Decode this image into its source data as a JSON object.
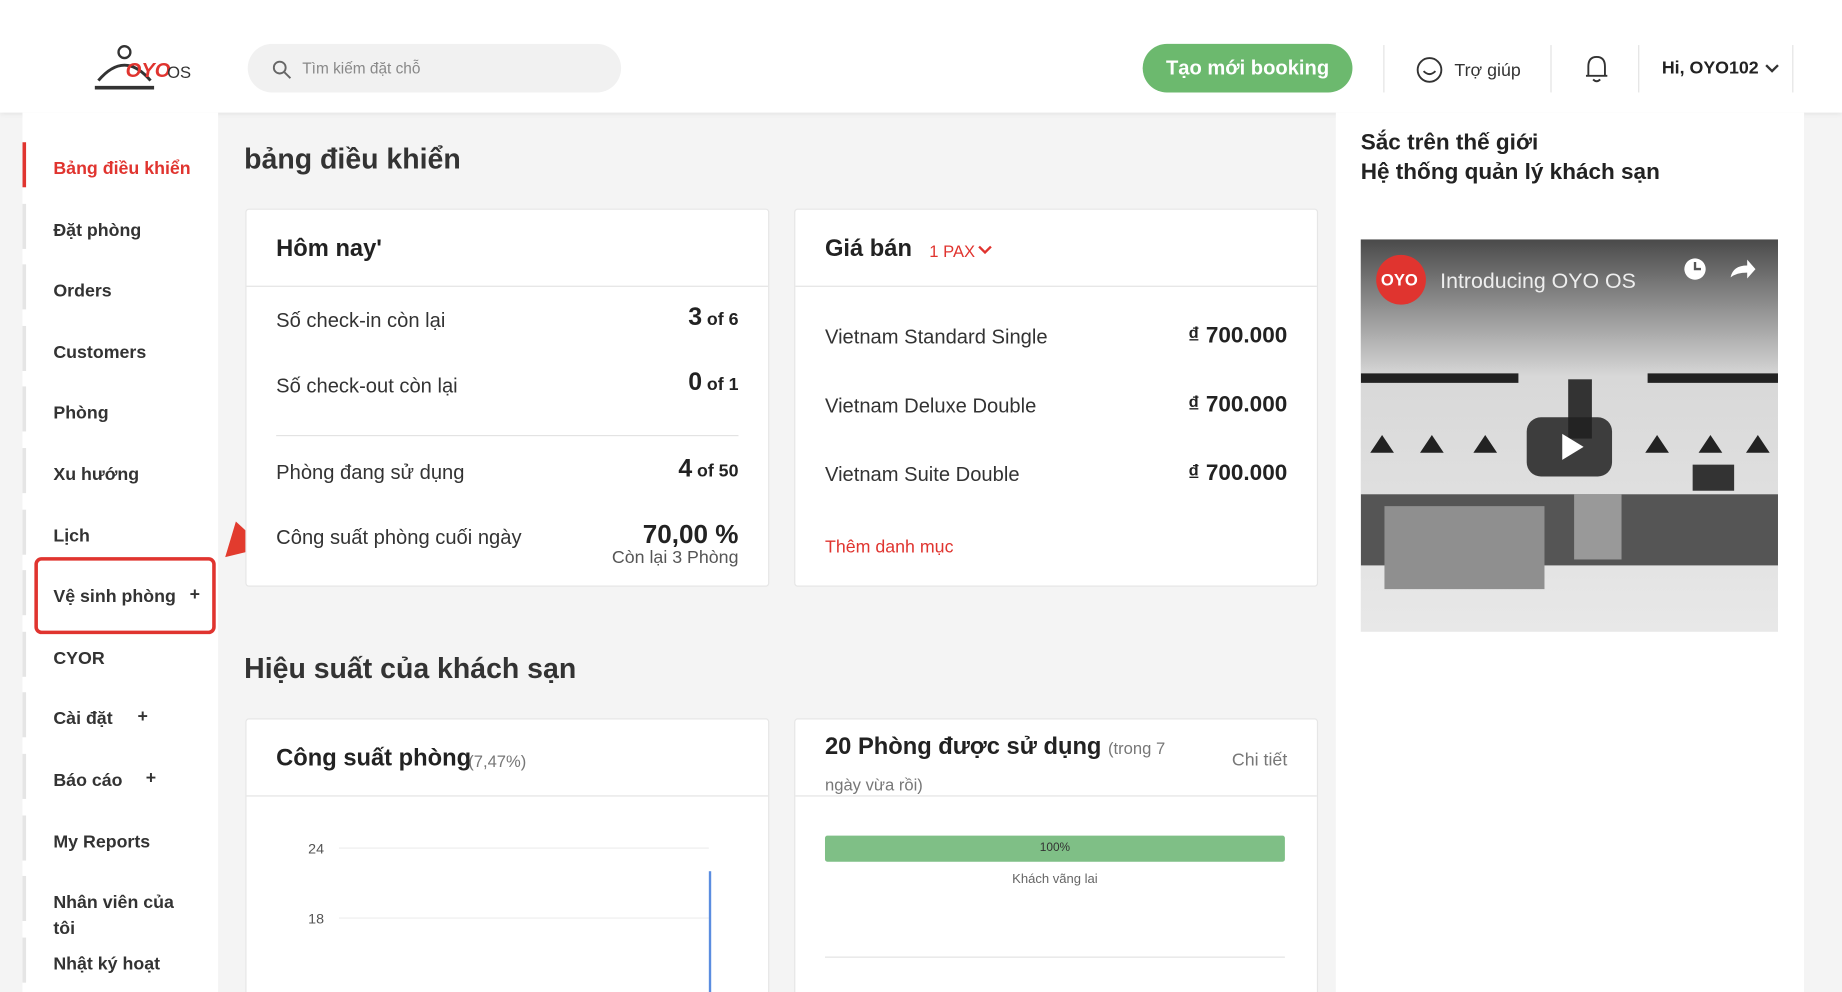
{
  "header": {
    "logo": "OYO",
    "logo_suffix": "OS",
    "search_placeholder": "Tìm kiếm đặt chỗ",
    "new_booking": "Tạo mới booking",
    "help": "Trợ giúp",
    "user": "Hi, OYO102"
  },
  "sidebar": [
    {
      "label": "Bảng điều khiển"
    },
    {
      "label": "Đặt phòng"
    },
    {
      "label": "Orders"
    },
    {
      "label": "Customers"
    },
    {
      "label": "Phòng"
    },
    {
      "label": "Xu hướng"
    },
    {
      "label": "Lịch"
    },
    {
      "label": "Vệ sinh phòng",
      "expand": "+"
    },
    {
      "label": "CYOR"
    },
    {
      "label": "Cài đặt",
      "expand": "+"
    },
    {
      "label": "Báo cáo",
      "expand": "+"
    },
    {
      "label": "My Reports"
    },
    {
      "label": "Nhân viên của tôi"
    },
    {
      "label": "Nhật ký hoạt"
    }
  ],
  "dashboard": {
    "title": "bảng điều khiển",
    "today": {
      "title": "Hôm nay'",
      "rows": [
        {
          "label": "Số check-in còn lại",
          "value": "3",
          "of": "of 6"
        },
        {
          "label": "Số check-out còn lại",
          "value": "0",
          "of": "of 1"
        },
        {
          "label": "Phòng đang sử dụng",
          "value": "4",
          "of": "of 50"
        }
      ],
      "occupancy_label": "Công suất phòng cuối ngày",
      "occupancy_value": "70,00 %",
      "occupancy_note": "Còn lại 3 Phòng"
    },
    "prices": {
      "title": "Giá bán",
      "pax": "1 PAX",
      "rows": [
        {
          "label": "Vietnam Standard Single",
          "price": "₫ 700.000"
        },
        {
          "label": "Vietnam Deluxe Double",
          "price": "₫ 700.000"
        },
        {
          "label": "Vietnam Suite Double",
          "price": "₫ 700.000"
        }
      ],
      "add": "Thêm danh mục"
    }
  },
  "panel": {
    "line1": "Sắc trên thế giới",
    "line2": "Hệ thống quản lý khách sạn",
    "video_logo": "OYO",
    "video_title": "Introducing OYO OS"
  },
  "performance": {
    "title": "Hiệu suất của khách sạn",
    "occupancy": {
      "title": "Công suất phòng",
      "note": "(7,47%)",
      "yticks": [
        "24",
        "18"
      ]
    },
    "rooms": {
      "title": "20 Phòng được sử dụng",
      "note": "(trong 7 ngày vừa rồi)",
      "detail": "Chi tiết",
      "bar_label": "100%",
      "bar_caption": "Khách vãng lai"
    }
  }
}
